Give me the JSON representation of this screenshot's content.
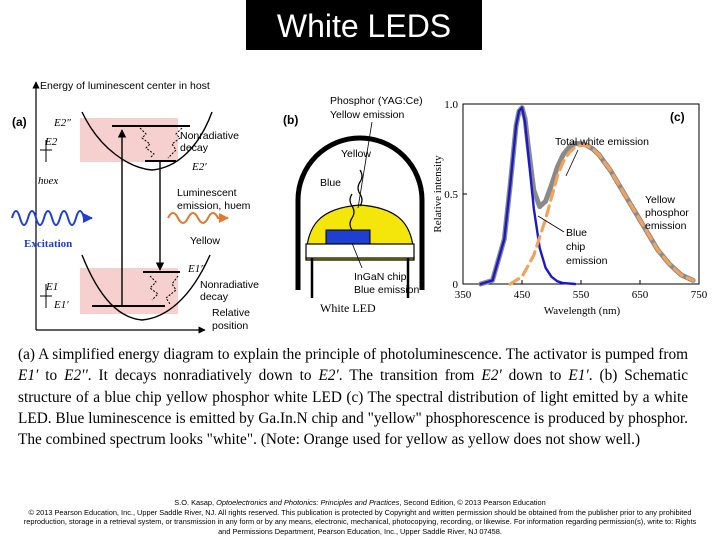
{
  "title": "White LEDS",
  "panel_a": {
    "panel_label": "(a)",
    "axis_label": "Energy of luminescent center in host",
    "level_e2pp": "E2″",
    "level_e2": "E2",
    "level_e2p": "E2′",
    "level_e1pp": "E1″",
    "level_e1": "E1",
    "level_e1p": "E1′",
    "hv_ex": "hυex",
    "nonradiative_top_1": "Nonradiative",
    "nonradiative_top_2": "decay",
    "luminescent_1": "Luminescent",
    "luminescent_2": "emission, hυem",
    "yellow": "Yellow",
    "excitation": "Excitation",
    "nonradiative_bot_1": "Nonradiative",
    "nonradiative_bot_2": "decay",
    "relative_1": "Relative",
    "relative_2": "position"
  },
  "panel_b": {
    "panel_label": "(b)",
    "phosphor_1": "Phosphor (YAG:Ce)",
    "phosphor_2": "Yellow emission",
    "yellow": "Yellow",
    "blue": "Blue",
    "chip_1": "InGaN chip",
    "chip_2": "Blue emission",
    "white_led": "White LED"
  },
  "chart_data": {
    "type": "line",
    "panel_label": "(c)",
    "xlabel": "Wavelength (nm)",
    "ylabel": "Relative intensity",
    "xlim": [
      350,
      750
    ],
    "ylim": [
      0,
      1.0
    ],
    "x_ticks": [
      "350",
      "450",
      "550",
      "650",
      "750"
    ],
    "y_ticks": [
      "0",
      "0.5",
      "1.0"
    ],
    "annotations": [
      "Total white emission",
      "Yellow",
      "phosphor",
      "emission",
      "Blue",
      "chip",
      "emission"
    ],
    "series": [
      {
        "name": "Total white emission",
        "color": "#8a8a8a",
        "x": [
          380,
          400,
          420,
          430,
          440,
          445,
          450,
          455,
          460,
          470,
          480,
          490,
          500,
          510,
          520,
          530,
          540,
          550,
          560,
          570,
          580,
          600,
          620,
          640,
          660,
          680,
          700,
          720,
          740
        ],
        "y": [
          0.0,
          0.02,
          0.25,
          0.55,
          0.88,
          0.96,
          0.98,
          0.92,
          0.78,
          0.52,
          0.43,
          0.46,
          0.55,
          0.65,
          0.72,
          0.76,
          0.78,
          0.78,
          0.77,
          0.75,
          0.72,
          0.63,
          0.52,
          0.41,
          0.3,
          0.19,
          0.11,
          0.05,
          0.02
        ]
      },
      {
        "name": "Blue chip emission",
        "color": "#1a1acc",
        "x": [
          380,
          400,
          420,
          430,
          440,
          445,
          450,
          455,
          460,
          470,
          480,
          490,
          500,
          510,
          520,
          540
        ],
        "y": [
          0.0,
          0.02,
          0.25,
          0.55,
          0.88,
          0.96,
          0.98,
          0.9,
          0.74,
          0.42,
          0.2,
          0.09,
          0.04,
          0.015,
          0.005,
          0.0
        ]
      },
      {
        "name": "Yellow phosphor emission",
        "color": "#f2a25a",
        "x": [
          430,
          450,
          470,
          490,
          500,
          510,
          520,
          530,
          540,
          550,
          560,
          570,
          580,
          600,
          620,
          640,
          660,
          680,
          700,
          720,
          740
        ],
        "y": [
          0.0,
          0.04,
          0.16,
          0.36,
          0.48,
          0.6,
          0.68,
          0.73,
          0.76,
          0.77,
          0.77,
          0.75,
          0.72,
          0.63,
          0.52,
          0.41,
          0.3,
          0.19,
          0.11,
          0.05,
          0.02
        ]
      }
    ]
  },
  "caption": {
    "part1": "(a) A simplified energy diagram to explain the principle of photoluminescence. The activator is pumped from ",
    "e1p": "E1′",
    "part2": " to ",
    "e2pp": "E2′′",
    "part3": ". It decays nonradiatively down to ",
    "e2p_a": "E2′",
    "part4": ". The transition from ",
    "e2p_b": "E2′",
    "part5": " down to ",
    "e1p_b": "E1′",
    "part6": ". (b) Schematic structure of a blue chip yellow phosphor white LED (c) The spectral distribution of light emitted by a white LED. Blue luminescence is emitted by Ga.In.N chip and \"yellow\" phosphorescence is produced by phosphor. The combined spectrum looks \"white\". (Note: Orange used for yellow as yellow does not show well.)"
  },
  "credit": {
    "part1": "S.O. Kasap, ",
    "book": "Optoelectronics and Photonics: Principles and Practices",
    "part2": ", Second Edition, © 2013 Pearson Education",
    "line2": "© 2013 Pearson Education, Inc., Upper Saddle River, NJ. All rights reserved. This publication is protected by Copyright and written permission should be obtained from the publisher prior to any prohibited reproduction, storage in a retrieval system, or transmission in any form or by any means, electronic, mechanical, photocopying, recording, or likewise. For information regarding permission(s), write to: Rights and Permissions Department, Pearson Education, Inc., Upper Saddle River, NJ 07458."
  }
}
